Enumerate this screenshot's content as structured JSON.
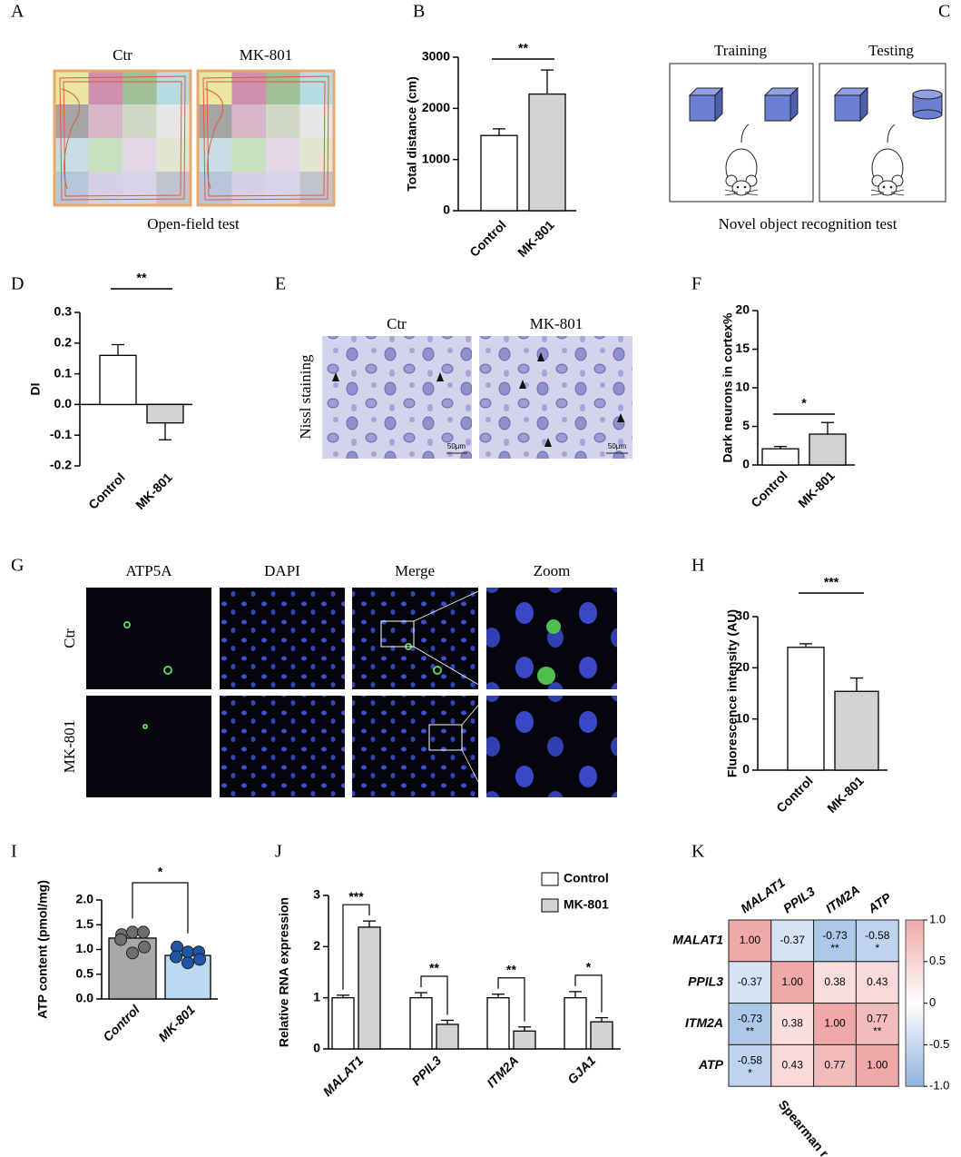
{
  "panels": {
    "A": {
      "label": "A",
      "titles": [
        "Ctr",
        "MK-801"
      ],
      "caption": "Open-field test"
    },
    "C": {
      "label": "C",
      "titles": [
        "Training",
        "Testing"
      ],
      "caption": "Novel object recognition test"
    },
    "E": {
      "label": "E",
      "titles": [
        "Ctr",
        "MK-801"
      ],
      "side_label": "Nissl staining",
      "scale_bars": [
        "50μm",
        "50μm"
      ]
    },
    "G": {
      "label": "G",
      "columns": [
        "ATP5A",
        "DAPI",
        "Merge",
        "Zoom"
      ],
      "rows": [
        "Ctr",
        "MK-801"
      ]
    }
  },
  "chart_data": [
    {
      "type": "bar",
      "label": "B",
      "ylabel": "Total distance (cm)",
      "categories": [
        "Control",
        "MK-801"
      ],
      "values": [
        1470,
        2280
      ],
      "errors": [
        130,
        470
      ],
      "colors": [
        "#ffffff",
        "#d3d3d3"
      ],
      "ylim": [
        0,
        3000
      ],
      "yticks": [
        0,
        1000,
        2000,
        3000
      ],
      "significance": "**"
    },
    {
      "type": "bar",
      "label": "D",
      "ylabel": "DI",
      "categories": [
        "Control",
        "MK-801"
      ],
      "values": [
        0.16,
        -0.06
      ],
      "errors": [
        0.035,
        0.055
      ],
      "colors": [
        "#ffffff",
        "#d3d3d3"
      ],
      "ylim": [
        -0.2,
        0.3
      ],
      "yticks": [
        0.3,
        0.2,
        0.1,
        {
          "value": 0,
          "label": "0.0"
        },
        -0.1,
        -0.2
      ],
      "significance": "**"
    },
    {
      "type": "bar",
      "label": "F",
      "ylabel": "Dark neurons in cortex%",
      "categories": [
        "Control",
        "MK-801"
      ],
      "values": [
        2.1,
        4.0
      ],
      "errors": [
        0.3,
        1.5
      ],
      "colors": [
        "#ffffff",
        "#d3d3d3"
      ],
      "ylim": [
        0,
        20
      ],
      "yticks": [
        0,
        5,
        10,
        15,
        20
      ],
      "significance": "*"
    },
    {
      "type": "bar",
      "label": "H",
      "ylabel": "Fluorescence intensity (AU)",
      "categories": [
        "Control",
        "MK-801"
      ],
      "values": [
        24,
        15.4
      ],
      "errors": [
        0.7,
        2.6
      ],
      "colors": [
        "#ffffff",
        "#d3d3d3"
      ],
      "ylim": [
        0,
        30
      ],
      "yticks": [
        0,
        10,
        20,
        30
      ],
      "significance": "***"
    },
    {
      "type": "bar",
      "label": "I",
      "ylabel": "ATP content (pmol/mg)",
      "categories": [
        "Control",
        "MK-801"
      ],
      "values": [
        1.23,
        0.88
      ],
      "errors": [
        0.1,
        0.07
      ],
      "colors": [
        "#a8a8a8",
        "#bcd9f2"
      ],
      "points": [
        [
          1.3,
          1.35,
          1.35,
          1.2,
          1.05,
          0.93
        ],
        [
          1.05,
          0.95,
          0.95,
          0.85,
          0.8,
          0.73
        ]
      ],
      "point_colors": [
        "#6e6e6e",
        "#1f55a8"
      ],
      "ylim": [
        0,
        2
      ],
      "yticks": [
        {
          "value": 0,
          "label": "0.0"
        },
        0.5,
        {
          "value": 1,
          "label": "1.0"
        },
        1.5,
        {
          "value": 2,
          "label": "2.0"
        }
      ],
      "significance": "*"
    },
    {
      "type": "bar",
      "label": "J",
      "ylabel": "Relative RNA expression",
      "categories": [
        "MALAT1",
        "PPIL3",
        "ITM2A",
        "GJA1"
      ],
      "series": [
        {
          "name": "Control",
          "color": "#ffffff",
          "values": [
            1,
            1,
            1,
            1
          ],
          "errors": [
            0.05,
            0.1,
            0.07,
            0.12
          ]
        },
        {
          "name": "MK-801",
          "color": "#d3d3d3",
          "values": [
            2.38,
            0.48,
            0.35,
            0.53
          ],
          "errors": [
            0.12,
            0.08,
            0.08,
            0.08
          ]
        }
      ],
      "ylim": [
        0,
        3
      ],
      "yticks": [
        0,
        1,
        2,
        3
      ],
      "significance": [
        "***",
        "**",
        "**",
        "*"
      ],
      "legend": "top-right"
    },
    {
      "type": "heatmap",
      "label": "K",
      "labels": [
        "MALAT1",
        "PPIL3",
        "ITM2A",
        "ATP"
      ],
      "values": [
        [
          1,
          -0.37,
          -0.73,
          -0.58
        ],
        [
          -0.37,
          1,
          0.38,
          0.43
        ],
        [
          -0.73,
          0.38,
          1,
          0.77
        ],
        [
          -0.58,
          0.43,
          0.77,
          1
        ]
      ],
      "value_labels": [
        [
          "1.00",
          "-0.37",
          "-0.73",
          "-0.58"
        ],
        [
          "-0.37",
          "1.00",
          "0.38",
          "0.43"
        ],
        [
          "-0.73",
          "0.38",
          "1.00",
          "0.77"
        ],
        [
          "-0.58",
          "0.43",
          "0.77",
          "1.00"
        ]
      ],
      "significance": [
        [
          null,
          null,
          "**",
          "*"
        ],
        [
          null,
          null,
          null,
          null
        ],
        [
          "**",
          null,
          null,
          "**"
        ],
        [
          "*",
          null,
          null,
          null
        ]
      ],
      "zlim": [
        -1,
        1
      ],
      "colorbar_ticks": [
        {
          "value": 1,
          "label": "1.0"
        },
        0.5,
        0,
        -0.5,
        {
          "value": -1,
          "label": "-1.0"
        }
      ],
      "colorbar_label": "Spearman r",
      "colors": [
        "#8fb3e0",
        "#ffffff",
        "#f0a8a8"
      ]
    }
  ]
}
